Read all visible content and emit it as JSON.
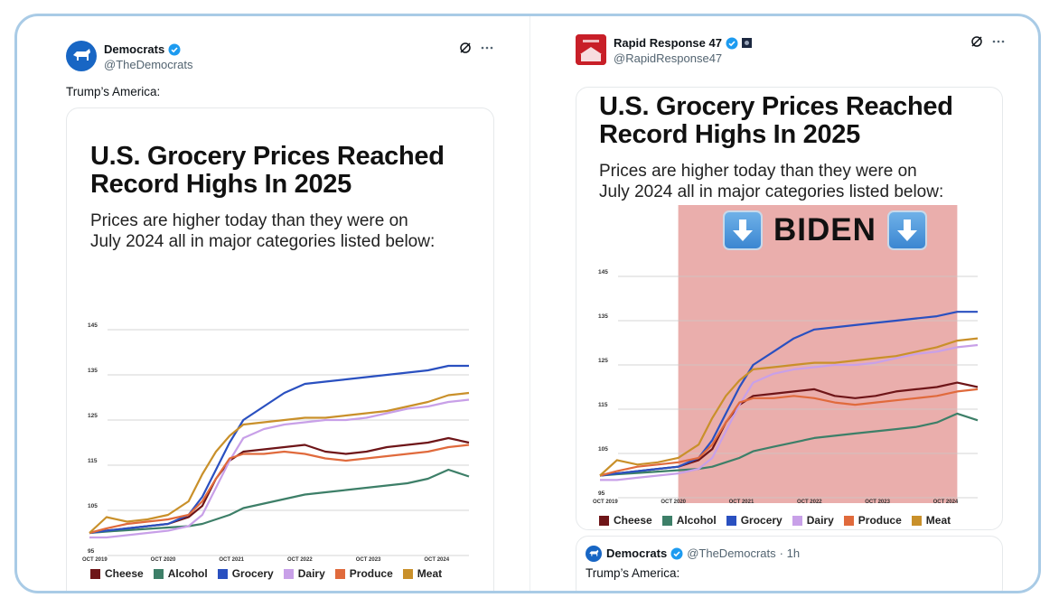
{
  "colors": {
    "cheese": "#6e1518",
    "alcohol": "#3d7f68",
    "grocery": "#2a50c0",
    "dairy": "#c8a0e8",
    "produce": "#e06a3c",
    "meat": "#c9902a",
    "biden_band": "#e7a3a0",
    "verified": "#1d9bf0",
    "democrats_blue": "#1866c4"
  },
  "left_tweet": {
    "name": "Democrats",
    "handle": "@TheDemocrats",
    "text": "Trump’s America:",
    "card": {
      "title_line1": "U.S. Grocery Prices Reached",
      "title_line2": "Record Highs In 2025",
      "subtitle_line1": "Prices are higher today than they were on",
      "subtitle_line2": "July 2024 all in major categories listed below:"
    }
  },
  "right_tweet": {
    "name": "Rapid Response 47",
    "handle": "@RapidResponse47",
    "card": {
      "title_line1": "U.S. Grocery Prices Reached",
      "title_line2": "Record Highs In 2025",
      "subtitle_line1": "Prices are higher today than they were on",
      "subtitle_line2": "July 2024 all in major categories listed below:",
      "overlay_label": "BIDEN"
    },
    "quoted": {
      "name": "Democrats",
      "handle": "@TheDemocrats",
      "time": "· 1h",
      "text": "Trump’s America:"
    }
  },
  "chart_data": {
    "type": "line",
    "title": "U.S. Grocery Prices Reached Record Highs In 2025",
    "subtitle": "Prices are higher today than they were on July 2024 all in major categories listed below:",
    "y_ticks": [
      "145",
      "135",
      "125",
      "115",
      "105",
      "95"
    ],
    "x_tick_labels": [
      "OCT 2019",
      "OCT 2020",
      "OCT 2021",
      "OCT 2022",
      "OCT 2023",
      "OCT 2024"
    ],
    "ylim": [
      95,
      145
    ],
    "xlim": [
      2019.75,
      2025.3
    ],
    "grid": true,
    "legend_position": "bottom",
    "legend": [
      "Cheese",
      "Alcohol",
      "Grocery",
      "Dairy",
      "Produce",
      "Meat"
    ],
    "series": [
      {
        "name": "Cheese",
        "color_key": "cheese",
        "x": [
          2019.75,
          2020.0,
          2020.3,
          2020.6,
          2020.9,
          2021.2,
          2021.4,
          2021.6,
          2021.8,
          2022.0,
          2022.3,
          2022.6,
          2022.9,
          2023.2,
          2023.5,
          2023.8,
          2024.1,
          2024.4,
          2024.7,
          2025.0,
          2025.3
        ],
        "y": [
          100,
          100.5,
          101,
          101.5,
          102,
          103.5,
          106,
          112,
          116,
          118,
          118.5,
          119,
          119.5,
          118,
          117.5,
          118,
          119,
          119.5,
          120,
          121,
          120
        ]
      },
      {
        "name": "Alcohol",
        "color_key": "alcohol",
        "x": [
          2019.75,
          2020.0,
          2020.3,
          2020.6,
          2020.9,
          2021.2,
          2021.4,
          2021.6,
          2021.8,
          2022.0,
          2022.3,
          2022.6,
          2022.9,
          2023.2,
          2023.5,
          2023.8,
          2024.1,
          2024.4,
          2024.7,
          2025.0,
          2025.3
        ],
        "y": [
          100,
          100.3,
          100.6,
          100.9,
          101.2,
          101.5,
          102,
          103,
          104,
          105.5,
          106.5,
          107.5,
          108.5,
          109,
          109.5,
          110,
          110.5,
          111,
          112,
          114,
          112.5
        ]
      },
      {
        "name": "Grocery",
        "color_key": "grocery",
        "x": [
          2019.75,
          2020.0,
          2020.3,
          2020.6,
          2020.9,
          2021.2,
          2021.4,
          2021.6,
          2021.8,
          2022.0,
          2022.3,
          2022.6,
          2022.9,
          2023.2,
          2023.5,
          2023.8,
          2024.1,
          2024.4,
          2024.7,
          2025.0,
          2025.3
        ],
        "y": [
          100,
          100.5,
          101,
          101.5,
          102,
          104,
          108,
          114,
          120,
          125,
          128,
          131,
          133,
          133.5,
          134,
          134.5,
          135,
          135.5,
          136,
          137,
          137
        ]
      },
      {
        "name": "Dairy",
        "color_key": "dairy",
        "x": [
          2019.75,
          2020.0,
          2020.3,
          2020.6,
          2020.9,
          2021.2,
          2021.4,
          2021.6,
          2021.8,
          2022.0,
          2022.3,
          2022.6,
          2022.9,
          2023.2,
          2023.5,
          2023.8,
          2024.1,
          2024.4,
          2024.7,
          2025.0,
          2025.3
        ],
        "y": [
          99,
          99,
          99.5,
          100,
          100.5,
          101.5,
          104,
          110,
          116,
          121,
          123,
          124,
          124.5,
          125,
          125,
          125.5,
          126.5,
          127.5,
          128,
          129,
          129.5
        ]
      },
      {
        "name": "Produce",
        "color_key": "produce",
        "x": [
          2019.75,
          2020.0,
          2020.3,
          2020.6,
          2020.9,
          2021.2,
          2021.4,
          2021.6,
          2021.8,
          2022.0,
          2022.3,
          2022.6,
          2022.9,
          2023.2,
          2023.5,
          2023.8,
          2024.1,
          2024.4,
          2024.7,
          2025.0,
          2025.3
        ],
        "y": [
          100,
          101,
          102,
          102.5,
          103,
          104,
          107,
          112,
          116.5,
          117.5,
          117.5,
          118,
          117.5,
          116.5,
          116,
          116.5,
          117,
          117.5,
          118,
          119,
          119.5
        ]
      },
      {
        "name": "Meat",
        "color_key": "meat",
        "x": [
          2019.75,
          2020.0,
          2020.3,
          2020.6,
          2020.9,
          2021.2,
          2021.4,
          2021.6,
          2021.8,
          2022.0,
          2022.3,
          2022.6,
          2022.9,
          2023.2,
          2023.5,
          2023.8,
          2024.1,
          2024.4,
          2024.7,
          2025.0,
          2025.3
        ],
        "y": [
          100,
          103.5,
          102.5,
          103,
          104,
          107,
          113,
          118,
          121.5,
          124,
          124.5,
          125,
          125.5,
          125.5,
          126,
          126.5,
          127,
          128,
          129,
          130.5,
          131
        ]
      }
    ]
  }
}
